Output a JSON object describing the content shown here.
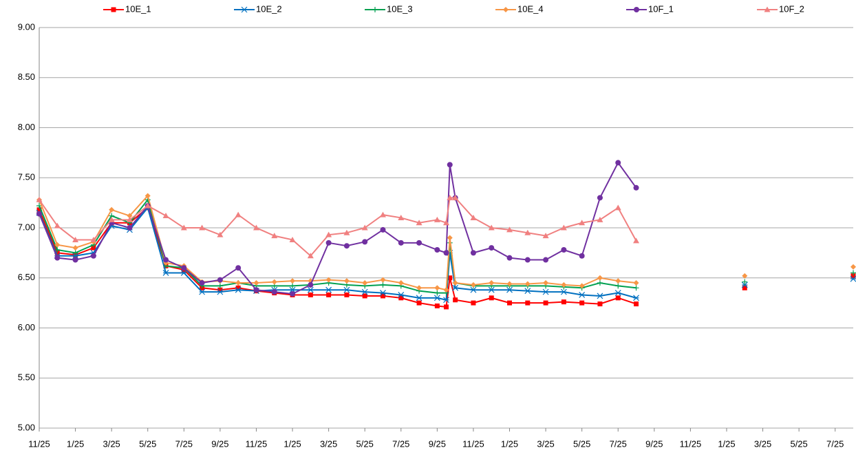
{
  "chart_data": {
    "type": "line",
    "x": [
      0,
      1,
      2,
      3,
      4,
      5,
      6,
      7,
      8,
      9,
      10,
      11,
      12,
      13,
      14,
      15,
      16,
      17,
      18,
      19,
      20,
      21,
      22,
      22.5,
      22.7,
      23,
      24,
      25,
      26,
      27,
      28,
      29,
      30,
      31,
      32,
      33,
      34,
      39,
      42,
      45
    ],
    "series": [
      {
        "name": "10E_1",
        "color": "#ff0000",
        "marker": "square",
        "values": [
          7.18,
          6.75,
          6.73,
          6.8,
          7.05,
          7.05,
          7.2,
          6.62,
          6.58,
          6.4,
          6.38,
          6.4,
          6.37,
          6.35,
          6.33,
          6.33,
          6.33,
          6.33,
          6.32,
          6.32,
          6.3,
          6.25,
          6.22,
          6.21,
          6.5,
          6.28,
          6.25,
          6.3,
          6.25,
          6.25,
          6.25,
          6.26,
          6.25,
          6.24,
          6.3,
          6.24,
          null,
          6.4,
          null,
          6.52
        ]
      },
      {
        "name": "10E_2",
        "color": "#0070c0",
        "marker": "star",
        "values": [
          7.15,
          6.72,
          6.72,
          6.75,
          7.02,
          6.98,
          7.2,
          6.55,
          6.55,
          6.36,
          6.36,
          6.38,
          6.37,
          6.38,
          6.38,
          6.38,
          6.38,
          6.38,
          6.36,
          6.35,
          6.33,
          6.3,
          6.3,
          6.28,
          6.75,
          6.4,
          6.38,
          6.38,
          6.38,
          6.37,
          6.36,
          6.36,
          6.33,
          6.32,
          6.35,
          6.3,
          null,
          6.43,
          null,
          6.49
        ]
      },
      {
        "name": "10E_3",
        "color": "#00a050",
        "marker": "plus",
        "values": [
          7.22,
          6.78,
          6.75,
          6.83,
          7.12,
          7.05,
          7.28,
          6.62,
          6.6,
          6.42,
          6.42,
          6.45,
          6.42,
          6.42,
          6.42,
          6.43,
          6.45,
          6.43,
          6.42,
          6.43,
          6.42,
          6.37,
          6.35,
          6.35,
          6.85,
          6.45,
          6.42,
          6.42,
          6.42,
          6.42,
          6.42,
          6.41,
          6.4,
          6.45,
          6.42,
          6.4,
          null,
          6.46,
          null,
          6.55
        ]
      },
      {
        "name": "10E_4",
        "color": "#f79646",
        "marker": "diamond",
        "values": [
          7.28,
          6.83,
          6.8,
          6.86,
          7.18,
          7.12,
          7.32,
          6.65,
          6.62,
          6.46,
          6.47,
          6.45,
          6.45,
          6.46,
          6.47,
          6.47,
          6.48,
          6.47,
          6.45,
          6.48,
          6.45,
          6.4,
          6.4,
          6.38,
          6.9,
          6.45,
          6.43,
          6.45,
          6.44,
          6.44,
          6.45,
          6.43,
          6.42,
          6.5,
          6.47,
          6.45,
          null,
          6.52,
          null,
          6.61
        ]
      },
      {
        "name": "10F_1",
        "color": "#7030a0",
        "marker": "circle",
        "values": [
          7.14,
          6.7,
          6.68,
          6.72,
          7.05,
          7.0,
          7.22,
          6.68,
          6.6,
          6.45,
          6.48,
          6.6,
          6.38,
          6.36,
          6.34,
          6.43,
          6.85,
          6.82,
          6.86,
          6.98,
          6.85,
          6.85,
          6.78,
          6.75,
          7.63,
          7.3,
          6.75,
          6.8,
          6.7,
          6.68,
          6.68,
          6.78,
          6.72,
          7.3,
          7.65,
          7.4,
          null,
          null,
          null,
          null
        ]
      },
      {
        "name": "10F_2",
        "color": "#f08080",
        "marker": "triangle",
        "values": [
          7.28,
          7.02,
          6.88,
          6.88,
          7.08,
          7.08,
          7.22,
          7.12,
          7.0,
          7.0,
          6.93,
          7.13,
          7.0,
          6.92,
          6.88,
          6.72,
          6.93,
          6.95,
          7.0,
          7.13,
          7.1,
          7.05,
          7.08,
          7.05,
          7.3,
          7.3,
          7.1,
          7.0,
          6.98,
          6.95,
          6.92,
          7.0,
          7.05,
          7.08,
          7.2,
          6.87,
          null,
          null,
          null,
          null
        ]
      }
    ],
    "xlim": [
      0,
      45
    ],
    "xticks": [
      {
        "value": 0,
        "label": "11/25"
      },
      {
        "value": 2,
        "label": "1/25"
      },
      {
        "value": 4,
        "label": "3/25"
      },
      {
        "value": 6,
        "label": "5/25"
      },
      {
        "value": 8,
        "label": "7/25"
      },
      {
        "value": 10,
        "label": "9/25"
      },
      {
        "value": 12,
        "label": "11/25"
      },
      {
        "value": 14,
        "label": "1/25"
      },
      {
        "value": 16,
        "label": "3/25"
      },
      {
        "value": 18,
        "label": "5/25"
      },
      {
        "value": 20,
        "label": "7/25"
      },
      {
        "value": 22,
        "label": "9/25"
      },
      {
        "value": 24,
        "label": "11/25"
      },
      {
        "value": 26,
        "label": "1/25"
      },
      {
        "value": 28,
        "label": "3/25"
      },
      {
        "value": 30,
        "label": "5/25"
      },
      {
        "value": 32,
        "label": "7/25"
      },
      {
        "value": 34,
        "label": "9/25"
      },
      {
        "value": 36,
        "label": "11/25"
      },
      {
        "value": 38,
        "label": "1/25"
      },
      {
        "value": 40,
        "label": "3/25"
      },
      {
        "value": 42,
        "label": "5/25"
      },
      {
        "value": 44,
        "label": "7/25"
      }
    ],
    "ylim": [
      5,
      9
    ],
    "yticks": [
      {
        "value": 5,
        "label": "5.00"
      },
      {
        "value": 5.5,
        "label": "5.50"
      },
      {
        "value": 6,
        "label": "6.00"
      },
      {
        "value": 6.5,
        "label": "6.50"
      },
      {
        "value": 7,
        "label": "7.00"
      },
      {
        "value": 7.5,
        "label": "7.50"
      },
      {
        "value": 8,
        "label": "8.00"
      },
      {
        "value": 8.5,
        "label": "8.50"
      },
      {
        "value": 9,
        "label": "9.00"
      }
    ],
    "grid": true,
    "legend": "top"
  }
}
